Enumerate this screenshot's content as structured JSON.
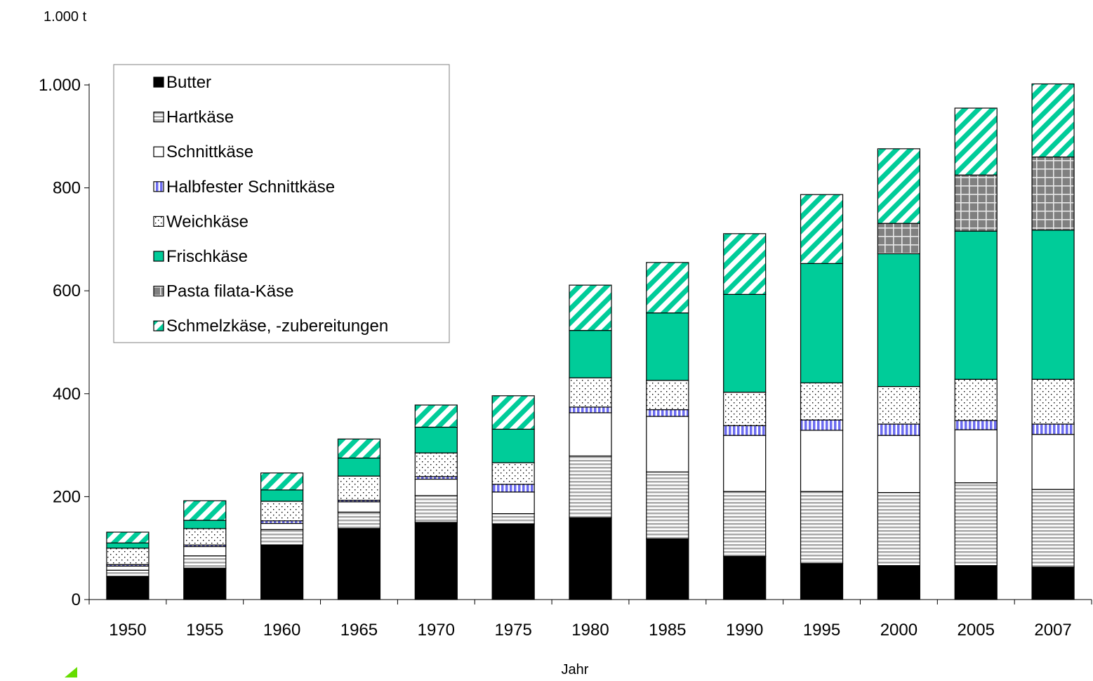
{
  "chart_data": {
    "type": "bar",
    "stacked": true,
    "unit_label": "1.000 t",
    "xlabel": "Jahr",
    "ylabel": "",
    "ylim": [
      0,
      1000
    ],
    "yticks": [
      0,
      200,
      400,
      600,
      800,
      1000
    ],
    "ytick_labels": [
      "0",
      "200",
      "400",
      "600",
      "800",
      "1.000"
    ],
    "grid": false,
    "legend_position": "top-left",
    "categories": [
      "1950",
      "1955",
      "1960",
      "1965",
      "1970",
      "1975",
      "1980",
      "1985",
      "1990",
      "1995",
      "2000",
      "2005",
      "2007"
    ],
    "series": [
      {
        "name": "Butter",
        "color": "#000000",
        "pattern": "solid",
        "values": [
          45,
          61,
          106,
          138,
          150,
          147,
          159,
          118,
          84,
          70,
          66,
          66,
          63
        ]
      },
      {
        "name": "Hartkäse",
        "color": "#a0a0a0",
        "pattern": "horizontal-stripes",
        "values": [
          12,
          24,
          30,
          32,
          52,
          20,
          120,
          130,
          126,
          140,
          142,
          161,
          151
        ]
      },
      {
        "name": "Schnittkäse",
        "color": "#ffffff",
        "pattern": "plain",
        "values": [
          8,
          18,
          12,
          20,
          32,
          42,
          84,
          108,
          109,
          119,
          111,
          103,
          107
        ]
      },
      {
        "name": "Halbfester Schnittkäse",
        "color": "#6c6cf0",
        "pattern": "vertical-stripes",
        "values": [
          3,
          3,
          5,
          3,
          5,
          15,
          11,
          13,
          19,
          20,
          22,
          18,
          20
        ]
      },
      {
        "name": "Weichkäse",
        "color": "#ffffff",
        "pattern": "dots",
        "values": [
          32,
          32,
          38,
          47,
          46,
          42,
          57,
          57,
          65,
          72,
          73,
          80,
          87
        ]
      },
      {
        "name": "Frischkäse",
        "color": "#00cc99",
        "pattern": "solid",
        "values": [
          10,
          16,
          22,
          35,
          50,
          65,
          92,
          131,
          190,
          232,
          258,
          288,
          290
        ]
      },
      {
        "name": "Pasta filata-Käse",
        "color": "#808080",
        "pattern": "grid",
        "values": [
          0,
          0,
          0,
          0,
          0,
          0,
          0,
          0,
          0,
          0,
          59,
          109,
          142
        ]
      },
      {
        "name": "Schmelzkäse, -zubereitungen",
        "color": "#00cc99",
        "pattern": "diagonal-stripes",
        "values": [
          21,
          38,
          33,
          37,
          43,
          65,
          88,
          98,
          118,
          134,
          145,
          130,
          142
        ]
      }
    ]
  },
  "colors": {
    "frischkase": "#00cc99",
    "halbfester": "#6c6cf0",
    "hartkase": "#a0a0a0",
    "pasta_filata": "#808080"
  }
}
